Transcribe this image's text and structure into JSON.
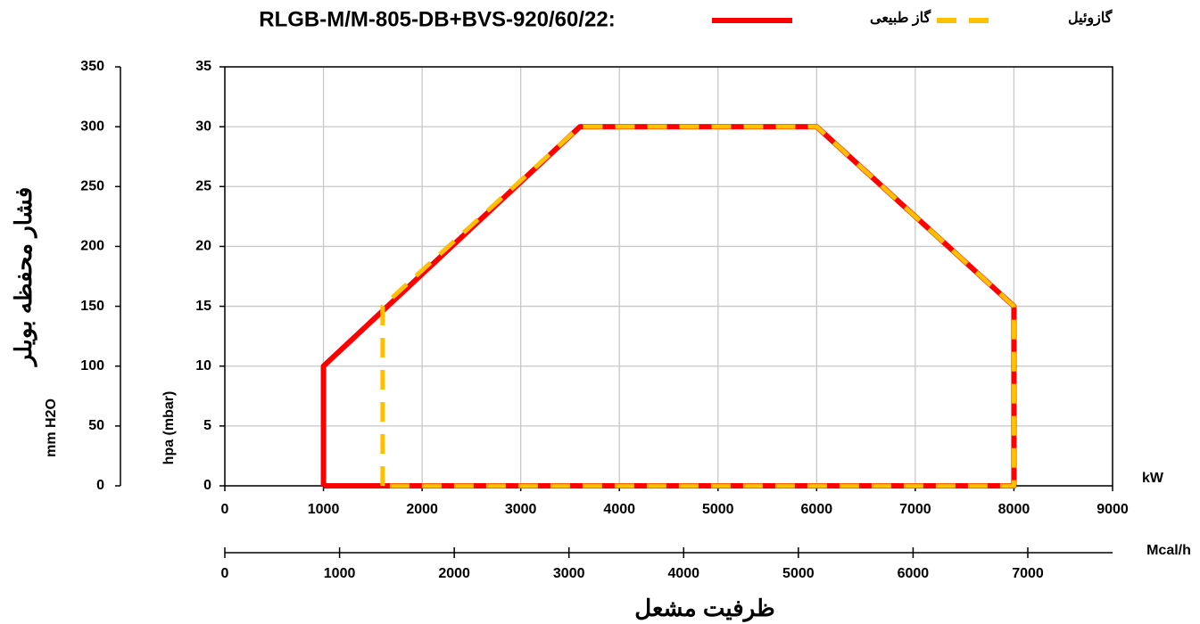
{
  "chart_data": {
    "type": "line",
    "title": "RLGB-M/M-805-DB+BVS-920/60/22:",
    "x_title": "ظرفیت مشعل",
    "y_title": "فشار محفظه بویلر",
    "xlabel": "kW",
    "x2label": "Mcal/h",
    "ylabel": "hpa (mbar)",
    "y2label": "mm H2O",
    "xlim": [
      0,
      9000
    ],
    "xticks": [
      0,
      1000,
      2000,
      3000,
      4000,
      5000,
      6000,
      7000,
      8000,
      9000
    ],
    "x2lim": [
      0,
      7739
    ],
    "x2ticks": [
      0,
      1000,
      2000,
      3000,
      4000,
      5000,
      6000,
      7000
    ],
    "ylim": [
      0,
      35
    ],
    "yticks": [
      0,
      5,
      10,
      15,
      20,
      25,
      30,
      35
    ],
    "y2lim": [
      0,
      350
    ],
    "y2ticks": [
      0,
      50,
      100,
      150,
      200,
      250,
      300,
      350
    ],
    "grid": true,
    "series": [
      {
        "name": "گاز طبیعی",
        "color": "#ff0000",
        "style": "solid",
        "x": [
          1000,
          1000,
          3600,
          6000,
          8000,
          8000,
          1000
        ],
        "values": [
          0,
          10,
          30,
          30,
          15,
          0,
          0
        ]
      },
      {
        "name": "گازوئیل",
        "color": "#ffc000",
        "style": "dashed",
        "x": [
          1600,
          1600,
          3600,
          6000,
          8000,
          8000,
          1600
        ],
        "values": [
          0,
          15,
          30,
          30,
          15,
          0,
          0
        ]
      }
    ]
  }
}
